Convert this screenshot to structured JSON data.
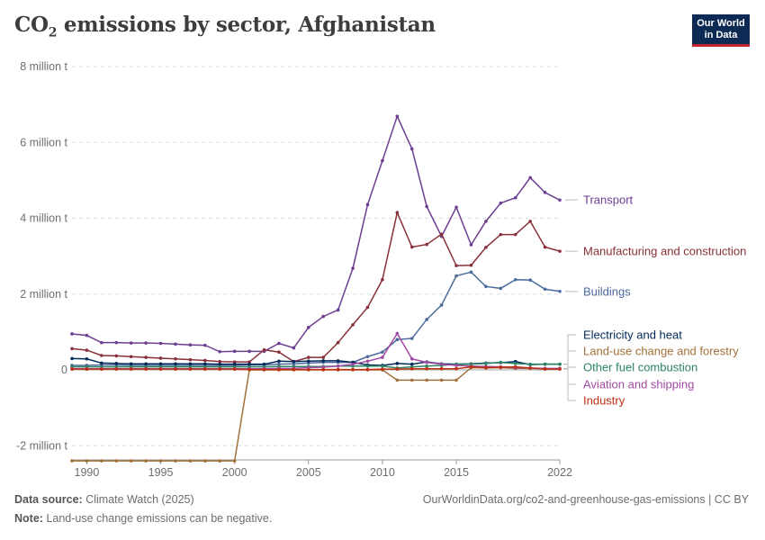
{
  "header": {
    "title_prefix": "CO",
    "title_sub": "2",
    "title_suffix": " emissions by sector, Afghanistan"
  },
  "logo": {
    "line1": "Our World",
    "line2": "in Data"
  },
  "footer": {
    "source_label": "Data source:",
    "source_value": "Climate Watch (2025)",
    "url": "OurWorldinData.org/co2-and-greenhouse-gas-emissions | CC BY",
    "note_label": "Note:",
    "note_value": "Land-use change emissions can be negative."
  },
  "chart_data": {
    "type": "line",
    "title": "CO₂ emissions by sector, Afghanistan",
    "xlabel": "",
    "ylabel": "",
    "xlim": [
      1989,
      2022
    ],
    "ylim": [
      -2400000,
      8000000
    ],
    "y_ticks": [
      -2000000,
      0,
      2000000,
      4000000,
      6000000,
      8000000
    ],
    "y_tick_labels": [
      "-2 million t",
      "0",
      "2 million t",
      "4 million t",
      "6 million t",
      "8 million t"
    ],
    "x_ticks": [
      1990,
      1995,
      2000,
      2005,
      2010,
      2015,
      2022
    ],
    "x_tick_labels": [
      "1990",
      "1995",
      "2000",
      "2005",
      "2010",
      "2015",
      "2022"
    ],
    "grid": "horizontal dashed",
    "legend": "line-end labels on right",
    "series": [
      {
        "name": "Transport",
        "color": "#6d3e91",
        "x": [
          1989,
          1990,
          1991,
          1992,
          1993,
          1994,
          1995,
          1996,
          1997,
          1998,
          1999,
          2000,
          2001,
          2002,
          2003,
          2004,
          2005,
          2006,
          2007,
          2008,
          2009,
          2010,
          2011,
          2012,
          2013,
          2014,
          2015,
          2016,
          2017,
          2018,
          2019,
          2020,
          2021,
          2022
        ],
        "values": [
          950000,
          910000,
          720000,
          720000,
          710000,
          710000,
          700000,
          680000,
          660000,
          650000,
          480000,
          490000,
          490000,
          490000,
          700000,
          580000,
          1120000,
          1410000,
          1580000,
          2680000,
          4360000,
          5520000,
          6690000,
          5830000,
          4310000,
          3520000,
          4290000,
          3300000,
          3920000,
          4400000,
          4540000,
          5070000,
          4680000,
          4480000
        ]
      },
      {
        "name": "Manufacturing and construction",
        "color": "#883039",
        "x": [
          1989,
          1990,
          1991,
          1992,
          1993,
          1994,
          1995,
          1996,
          1997,
          1998,
          1999,
          2000,
          2001,
          2002,
          2003,
          2004,
          2005,
          2006,
          2007,
          2008,
          2009,
          2010,
          2011,
          2012,
          2013,
          2014,
          2015,
          2016,
          2017,
          2018,
          2019,
          2020,
          2021,
          2022
        ],
        "values": [
          560000,
          520000,
          380000,
          370000,
          350000,
          330000,
          310000,
          290000,
          270000,
          250000,
          220000,
          210000,
          210000,
          530000,
          470000,
          220000,
          330000,
          330000,
          720000,
          1190000,
          1650000,
          2380000,
          4150000,
          3240000,
          3310000,
          3580000,
          2750000,
          2760000,
          3230000,
          3570000,
          3570000,
          3920000,
          3240000,
          3130000
        ]
      },
      {
        "name": "Buildings",
        "color": "#4c6a9c",
        "x": [
          1989,
          1990,
          1991,
          1992,
          1993,
          1994,
          1995,
          1996,
          1997,
          1998,
          1999,
          2000,
          2001,
          2002,
          2003,
          2004,
          2005,
          2006,
          2007,
          2008,
          2009,
          2010,
          2011,
          2012,
          2013,
          2014,
          2015,
          2016,
          2017,
          2018,
          2019,
          2020,
          2021,
          2022
        ],
        "values": [
          120000,
          120000,
          130000,
          130000,
          120000,
          120000,
          120000,
          120000,
          120000,
          120000,
          120000,
          120000,
          130000,
          130000,
          150000,
          160000,
          180000,
          200000,
          200000,
          200000,
          350000,
          470000,
          800000,
          830000,
          1330000,
          1710000,
          2480000,
          2580000,
          2200000,
          2150000,
          2380000,
          2370000,
          2130000,
          2070000
        ]
      },
      {
        "name": "Electricity and heat",
        "color": "#00295b",
        "x": [
          1989,
          1990,
          1991,
          1992,
          1993,
          1994,
          1995,
          1996,
          1997,
          1998,
          1999,
          2000,
          2001,
          2002,
          2003,
          2004,
          2005,
          2006,
          2007,
          2008,
          2009,
          2010,
          2011,
          2012,
          2013,
          2014,
          2015,
          2016,
          2017,
          2018,
          2019,
          2020,
          2021,
          2022
        ],
        "values": [
          300000,
          290000,
          180000,
          170000,
          160000,
          160000,
          160000,
          160000,
          160000,
          160000,
          150000,
          150000,
          150000,
          150000,
          230000,
          220000,
          230000,
          240000,
          240000,
          200000,
          130000,
          120000,
          170000,
          150000,
          210000,
          160000,
          150000,
          160000,
          180000,
          190000,
          220000,
          140000,
          150000,
          150000
        ]
      },
      {
        "name": "Land-use change and forestry",
        "color": "#a2703a",
        "x": [
          1989,
          1990,
          1991,
          1992,
          1993,
          1994,
          1995,
          1996,
          1997,
          1998,
          1999,
          2000,
          2001,
          2002,
          2003,
          2004,
          2005,
          2006,
          2007,
          2008,
          2009,
          2010,
          2011,
          2012,
          2013,
          2014,
          2015,
          2016,
          2017,
          2018,
          2019,
          2020,
          2021,
          2022
        ],
        "values": [
          -2400000,
          -2400000,
          -2400000,
          -2400000,
          -2400000,
          -2400000,
          -2400000,
          -2400000,
          -2400000,
          -2400000,
          -2400000,
          -2400000,
          0,
          0,
          0,
          0,
          0,
          0,
          0,
          0,
          0,
          0,
          -270000,
          -270000,
          -270000,
          -270000,
          -270000,
          60000,
          50000,
          60000,
          40000,
          40000,
          30000,
          30000
        ]
      },
      {
        "name": "Other fuel combustion",
        "color": "#2c8465",
        "x": [
          1989,
          1990,
          1991,
          1992,
          1993,
          1994,
          1995,
          1996,
          1997,
          1998,
          1999,
          2000,
          2001,
          2002,
          2003,
          2004,
          2005,
          2006,
          2007,
          2008,
          2009,
          2010,
          2011,
          2012,
          2013,
          2014,
          2015,
          2016,
          2017,
          2018,
          2019,
          2020,
          2021,
          2022
        ],
        "values": [
          80000,
          80000,
          80000,
          80000,
          80000,
          80000,
          80000,
          80000,
          80000,
          80000,
          80000,
          80000,
          80000,
          80000,
          90000,
          90000,
          90000,
          90000,
          100000,
          100000,
          100000,
          100000,
          50000,
          80000,
          100000,
          120000,
          150000,
          150000,
          170000,
          200000,
          170000,
          150000,
          150000,
          150000
        ]
      },
      {
        "name": "Aviation and shipping",
        "color": "#a14aa3",
        "x": [
          1989,
          1990,
          1991,
          1992,
          1993,
          1994,
          1995,
          1996,
          1997,
          1998,
          1999,
          2000,
          2001,
          2002,
          2003,
          2004,
          2005,
          2006,
          2007,
          2008,
          2009,
          2010,
          2011,
          2012,
          2013,
          2014,
          2015,
          2016,
          2017,
          2018,
          2019,
          2020,
          2021,
          2022
        ],
        "values": [
          30000,
          30000,
          30000,
          30000,
          30000,
          30000,
          30000,
          30000,
          30000,
          30000,
          30000,
          30000,
          30000,
          30000,
          40000,
          40000,
          60000,
          70000,
          100000,
          150000,
          230000,
          330000,
          960000,
          290000,
          200000,
          150000,
          120000,
          100000,
          90000,
          80000,
          60000,
          50000,
          40000,
          40000
        ]
      },
      {
        "name": "Industry",
        "color": "#be2f12",
        "x": [
          1989,
          1990,
          1991,
          1992,
          1993,
          1994,
          1995,
          1996,
          1997,
          1998,
          1999,
          2000,
          2001,
          2002,
          2003,
          2004,
          2005,
          2006,
          2007,
          2008,
          2009,
          2010,
          2011,
          2012,
          2013,
          2014,
          2015,
          2016,
          2017,
          2018,
          2019,
          2020,
          2021,
          2022
        ],
        "values": [
          20000,
          20000,
          20000,
          20000,
          20000,
          20000,
          20000,
          20000,
          20000,
          20000,
          20000,
          20000,
          10000,
          10000,
          10000,
          10000,
          10000,
          10000,
          10000,
          10000,
          10000,
          20000,
          20000,
          30000,
          30000,
          30000,
          30000,
          80000,
          60000,
          70000,
          80000,
          50000,
          20000,
          20000
        ]
      }
    ]
  }
}
